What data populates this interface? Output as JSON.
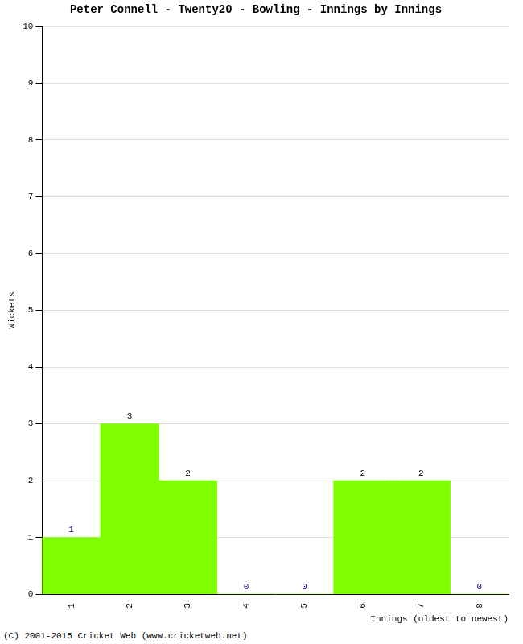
{
  "chart_data": {
    "type": "bar",
    "title": "Peter Connell - Twenty20 - Bowling - Innings by Innings",
    "x_label": "Innings (oldest to newest)",
    "y_label": "Wickets",
    "categories": [
      "1",
      "2",
      "3",
      "4",
      "5",
      "6",
      "7",
      "8"
    ],
    "values": [
      1,
      3,
      2,
      0,
      0,
      2,
      2,
      0
    ],
    "color": "#80ff00",
    "ylim": [
      0,
      10
    ],
    "yticks": [
      0,
      1,
      2,
      3,
      4,
      5,
      6,
      7,
      8,
      9,
      10
    ],
    "grid": true,
    "data_labels": true,
    "annotations": [
      "(C) 2001-2015 Cricket Web (www.cricketweb.net)"
    ]
  }
}
